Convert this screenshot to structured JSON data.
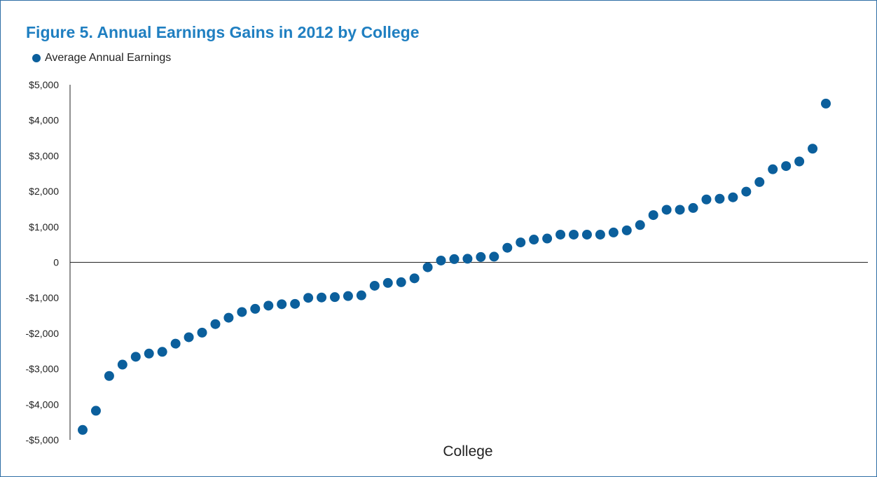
{
  "chart_data": {
    "type": "scatter",
    "title": "Figure 5. Annual Earnings Gains in 2012 by College",
    "xlabel": "College",
    "ylabel": "",
    "ylim": [
      -5000,
      5000
    ],
    "yticks": [
      5000,
      4000,
      3000,
      2000,
      1000,
      0,
      -1000,
      -2000,
      -3000,
      -4000,
      -5000
    ],
    "ytick_labels": [
      "$5,000",
      "$4,000",
      "$3,000",
      "$2,000",
      "$1,000",
      "0",
      "-$1,000",
      "-$2,000",
      "-$3,000",
      "-$4,000",
      "-$5,000"
    ],
    "grid": false,
    "legend_position": "top-left",
    "series": [
      {
        "name": "Average Annual Earnings",
        "color": "#0b5f9c",
        "values": [
          -4720,
          -4180,
          -3200,
          -2880,
          -2660,
          -2570,
          -2520,
          -2290,
          -2110,
          -1980,
          -1740,
          -1560,
          -1400,
          -1310,
          -1220,
          -1180,
          -1170,
          -1000,
          -990,
          -980,
          -950,
          -930,
          -660,
          -580,
          -560,
          -450,
          -140,
          50,
          90,
          100,
          150,
          160,
          410,
          560,
          640,
          670,
          780,
          780,
          780,
          780,
          840,
          900,
          1050,
          1330,
          1480,
          1480,
          1530,
          1770,
          1790,
          1830,
          1990,
          2260,
          2620,
          2710,
          2840,
          3200,
          4470
        ]
      }
    ]
  }
}
